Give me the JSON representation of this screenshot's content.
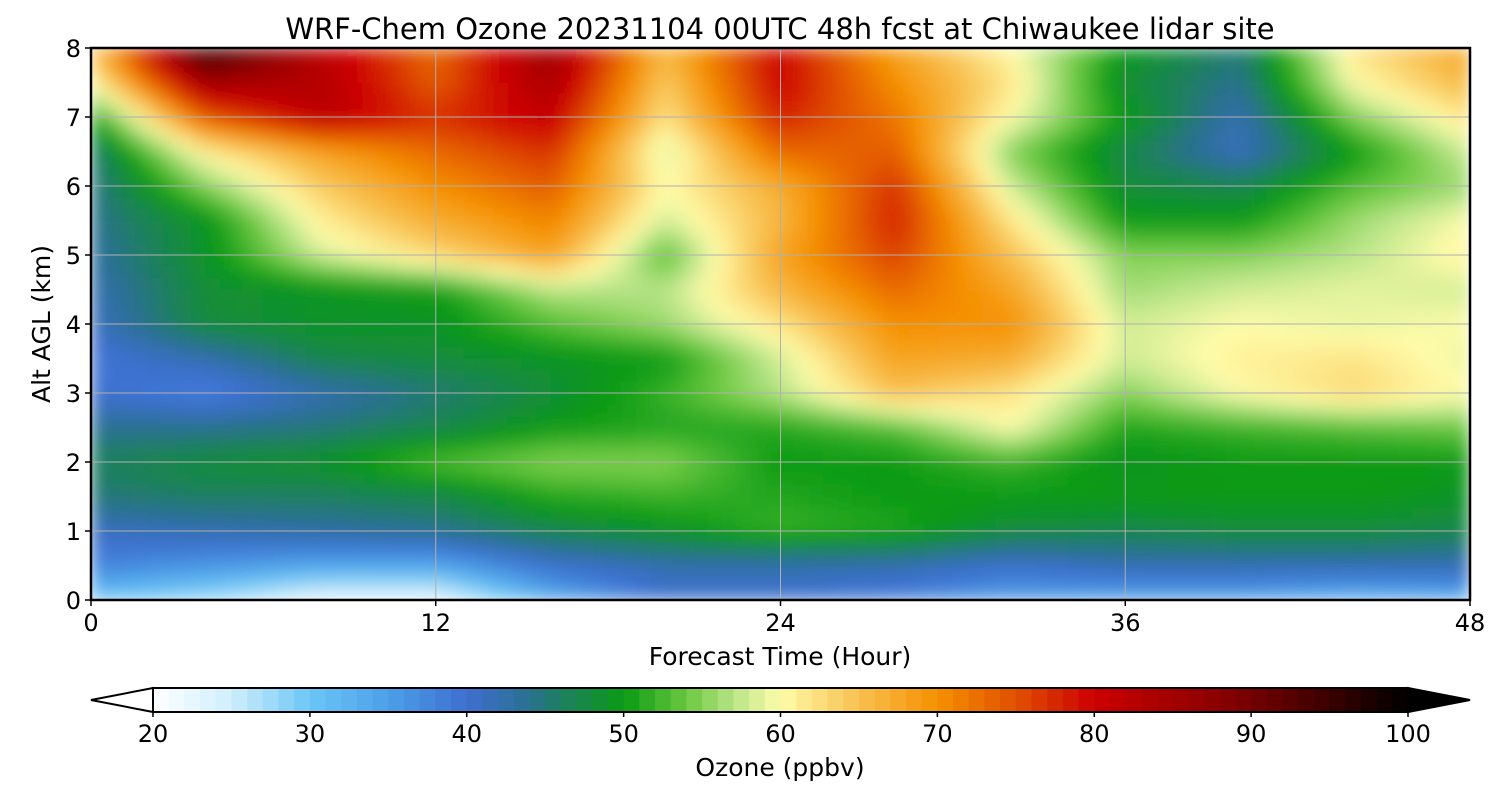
{
  "chart_data": {
    "type": "heatmap",
    "title": "WRF-Chem Ozone  20231104 00UTC 48h fcst at Chiwaukee lidar site",
    "xlabel": "Forecast Time (Hour)",
    "ylabel": "Alt AGL (km)",
    "xlim": [
      0,
      48
    ],
    "ylim": [
      0,
      8
    ],
    "xticks": [
      0,
      12,
      24,
      36,
      48
    ],
    "yticks": [
      0,
      1,
      2,
      3,
      4,
      5,
      6,
      7,
      8
    ],
    "grid": true,
    "x": [
      0,
      4,
      8,
      12,
      16,
      20,
      24,
      28,
      32,
      36,
      40,
      44,
      48
    ],
    "y": [
      0,
      0.5,
      1,
      1.5,
      2,
      2.5,
      3,
      3.5,
      4,
      4.5,
      5,
      5.5,
      6,
      6.5,
      7,
      7.5,
      8
    ],
    "z": [
      [
        30,
        27,
        22,
        22,
        33,
        40,
        40,
        38,
        35,
        34,
        34,
        32,
        33
      ],
      [
        38,
        36,
        34,
        34,
        40,
        42,
        42,
        42,
        40,
        42,
        42,
        42,
        42
      ],
      [
        41,
        42,
        43,
        44,
        47,
        49,
        52,
        51,
        48,
        47,
        48,
        48,
        47
      ],
      [
        45,
        46,
        46,
        47,
        51,
        52,
        51,
        50,
        50,
        50,
        50,
        50,
        49
      ],
      [
        46,
        48,
        49,
        53,
        55,
        55,
        50,
        50,
        52,
        49,
        50,
        50,
        50
      ],
      [
        44,
        44,
        45,
        47,
        50,
        51,
        51,
        53,
        60,
        51,
        52,
        53,
        54
      ],
      [
        40,
        38,
        42,
        45,
        48,
        52,
        57,
        65,
        62,
        55,
        60,
        63,
        60
      ],
      [
        39,
        42,
        47,
        48,
        49,
        50,
        58,
        68,
        67,
        58,
        61,
        62,
        59
      ],
      [
        41,
        48,
        49,
        49,
        53,
        56,
        62,
        70,
        70,
        58,
        60,
        59,
        60
      ],
      [
        42,
        48,
        49,
        50,
        57,
        57,
        66,
        73,
        68,
        56,
        58,
        59,
        58
      ],
      [
        43,
        49,
        58,
        63,
        68,
        53,
        68,
        76,
        65,
        55,
        55,
        57,
        61
      ],
      [
        44,
        49,
        61,
        67,
        71,
        58,
        66,
        78,
        62,
        50,
        50,
        56,
        60
      ],
      [
        44,
        55,
        64,
        70,
        74,
        60,
        67,
        77,
        58,
        48,
        47,
        53,
        56
      ],
      [
        45,
        61,
        68,
        73,
        77,
        58,
        73,
        74,
        55,
        47,
        41,
        50,
        58
      ],
      [
        50,
        74,
        82,
        77,
        81,
        62,
        78,
        72,
        60,
        50,
        42,
        55,
        62
      ],
      [
        60,
        85,
        83,
        74,
        84,
        64,
        80,
        70,
        62,
        48,
        44,
        60,
        66
      ],
      [
        64,
        97,
        82,
        73,
        86,
        66,
        80,
        68,
        60,
        50,
        45,
        62,
        68
      ]
    ],
    "colorbar": {
      "label": "Ozone  (ppbv)",
      "min": 20,
      "max": 100,
      "step": 1,
      "extend": "both",
      "ticks": [
        20,
        30,
        40,
        50,
        60,
        70,
        80,
        90,
        100
      ],
      "stops": [
        [
          20,
          "#ffffff"
        ],
        [
          25,
          "#cfeefc"
        ],
        [
          30,
          "#6cc6f6"
        ],
        [
          35,
          "#4c9fe8"
        ],
        [
          40,
          "#3d6fd0"
        ],
        [
          44,
          "#2a7090"
        ],
        [
          46,
          "#1e7f60"
        ],
        [
          50,
          "#0a9a14"
        ],
        [
          54,
          "#6cc840"
        ],
        [
          57,
          "#b8e488"
        ],
        [
          60,
          "#fffcaa"
        ],
        [
          65,
          "#f8c050"
        ],
        [
          70,
          "#f59000"
        ],
        [
          75,
          "#e05000"
        ],
        [
          80,
          "#cc0000"
        ],
        [
          88,
          "#8a0000"
        ],
        [
          95,
          "#3a0000"
        ],
        [
          100,
          "#000000"
        ]
      ]
    }
  }
}
